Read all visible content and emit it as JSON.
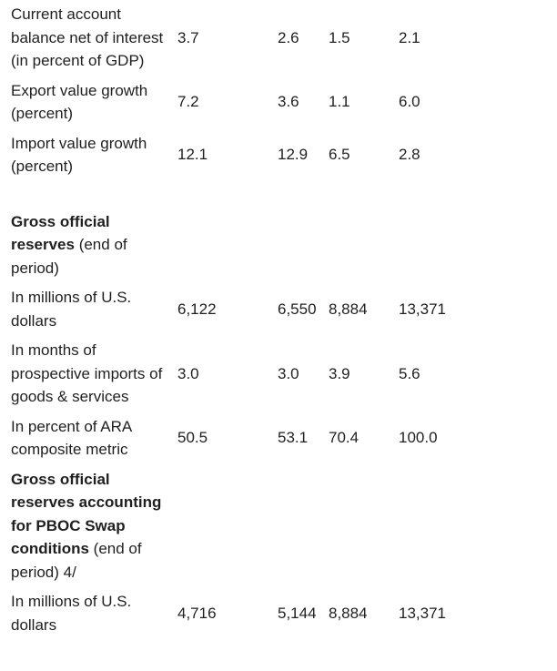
{
  "table": {
    "num_value_columns": 4,
    "rows": [
      {
        "type": "data",
        "label": "Current account balance net of interest (in percent of GDP)",
        "values": [
          "3.7",
          "2.6",
          "1.5",
          "2.1"
        ]
      },
      {
        "type": "data",
        "label": "Export value growth (percent)",
        "values": [
          "7.2",
          "3.6",
          "1.1",
          "6.0"
        ]
      },
      {
        "type": "data",
        "label": "Import value growth (percent)",
        "values": [
          "12.1",
          "12.9",
          "6.5",
          "2.8"
        ]
      },
      {
        "type": "spacer"
      },
      {
        "type": "section",
        "label_bold": "Gross official reserves",
        "label_rest": " (end of period)",
        "values": [
          "",
          "",
          "",
          ""
        ]
      },
      {
        "type": "data",
        "label": "In millions of U.S. dollars",
        "values": [
          "6,122",
          "6,550",
          "8,884",
          "13,371"
        ]
      },
      {
        "type": "data",
        "label": "In months of prospective imports of goods & services",
        "values": [
          "3.0",
          "3.0",
          "3.9",
          "5.6"
        ]
      },
      {
        "type": "data",
        "label": "In percent of ARA composite metric",
        "values": [
          "50.5",
          "53.1",
          "70.4",
          "100.0"
        ]
      },
      {
        "type": "section",
        "label_bold": "Gross official reserves accounting for PBOC Swap conditions",
        "label_rest": " (end of period) 4/",
        "values": [
          "",
          "",
          "",
          ""
        ]
      },
      {
        "type": "data",
        "label": "In millions of U.S. dollars",
        "values": [
          "4,716",
          "5,144",
          "8,884",
          "13,371"
        ]
      }
    ]
  },
  "style": {
    "text_color": "#1f1f1f",
    "background_color": "#ffffff"
  }
}
